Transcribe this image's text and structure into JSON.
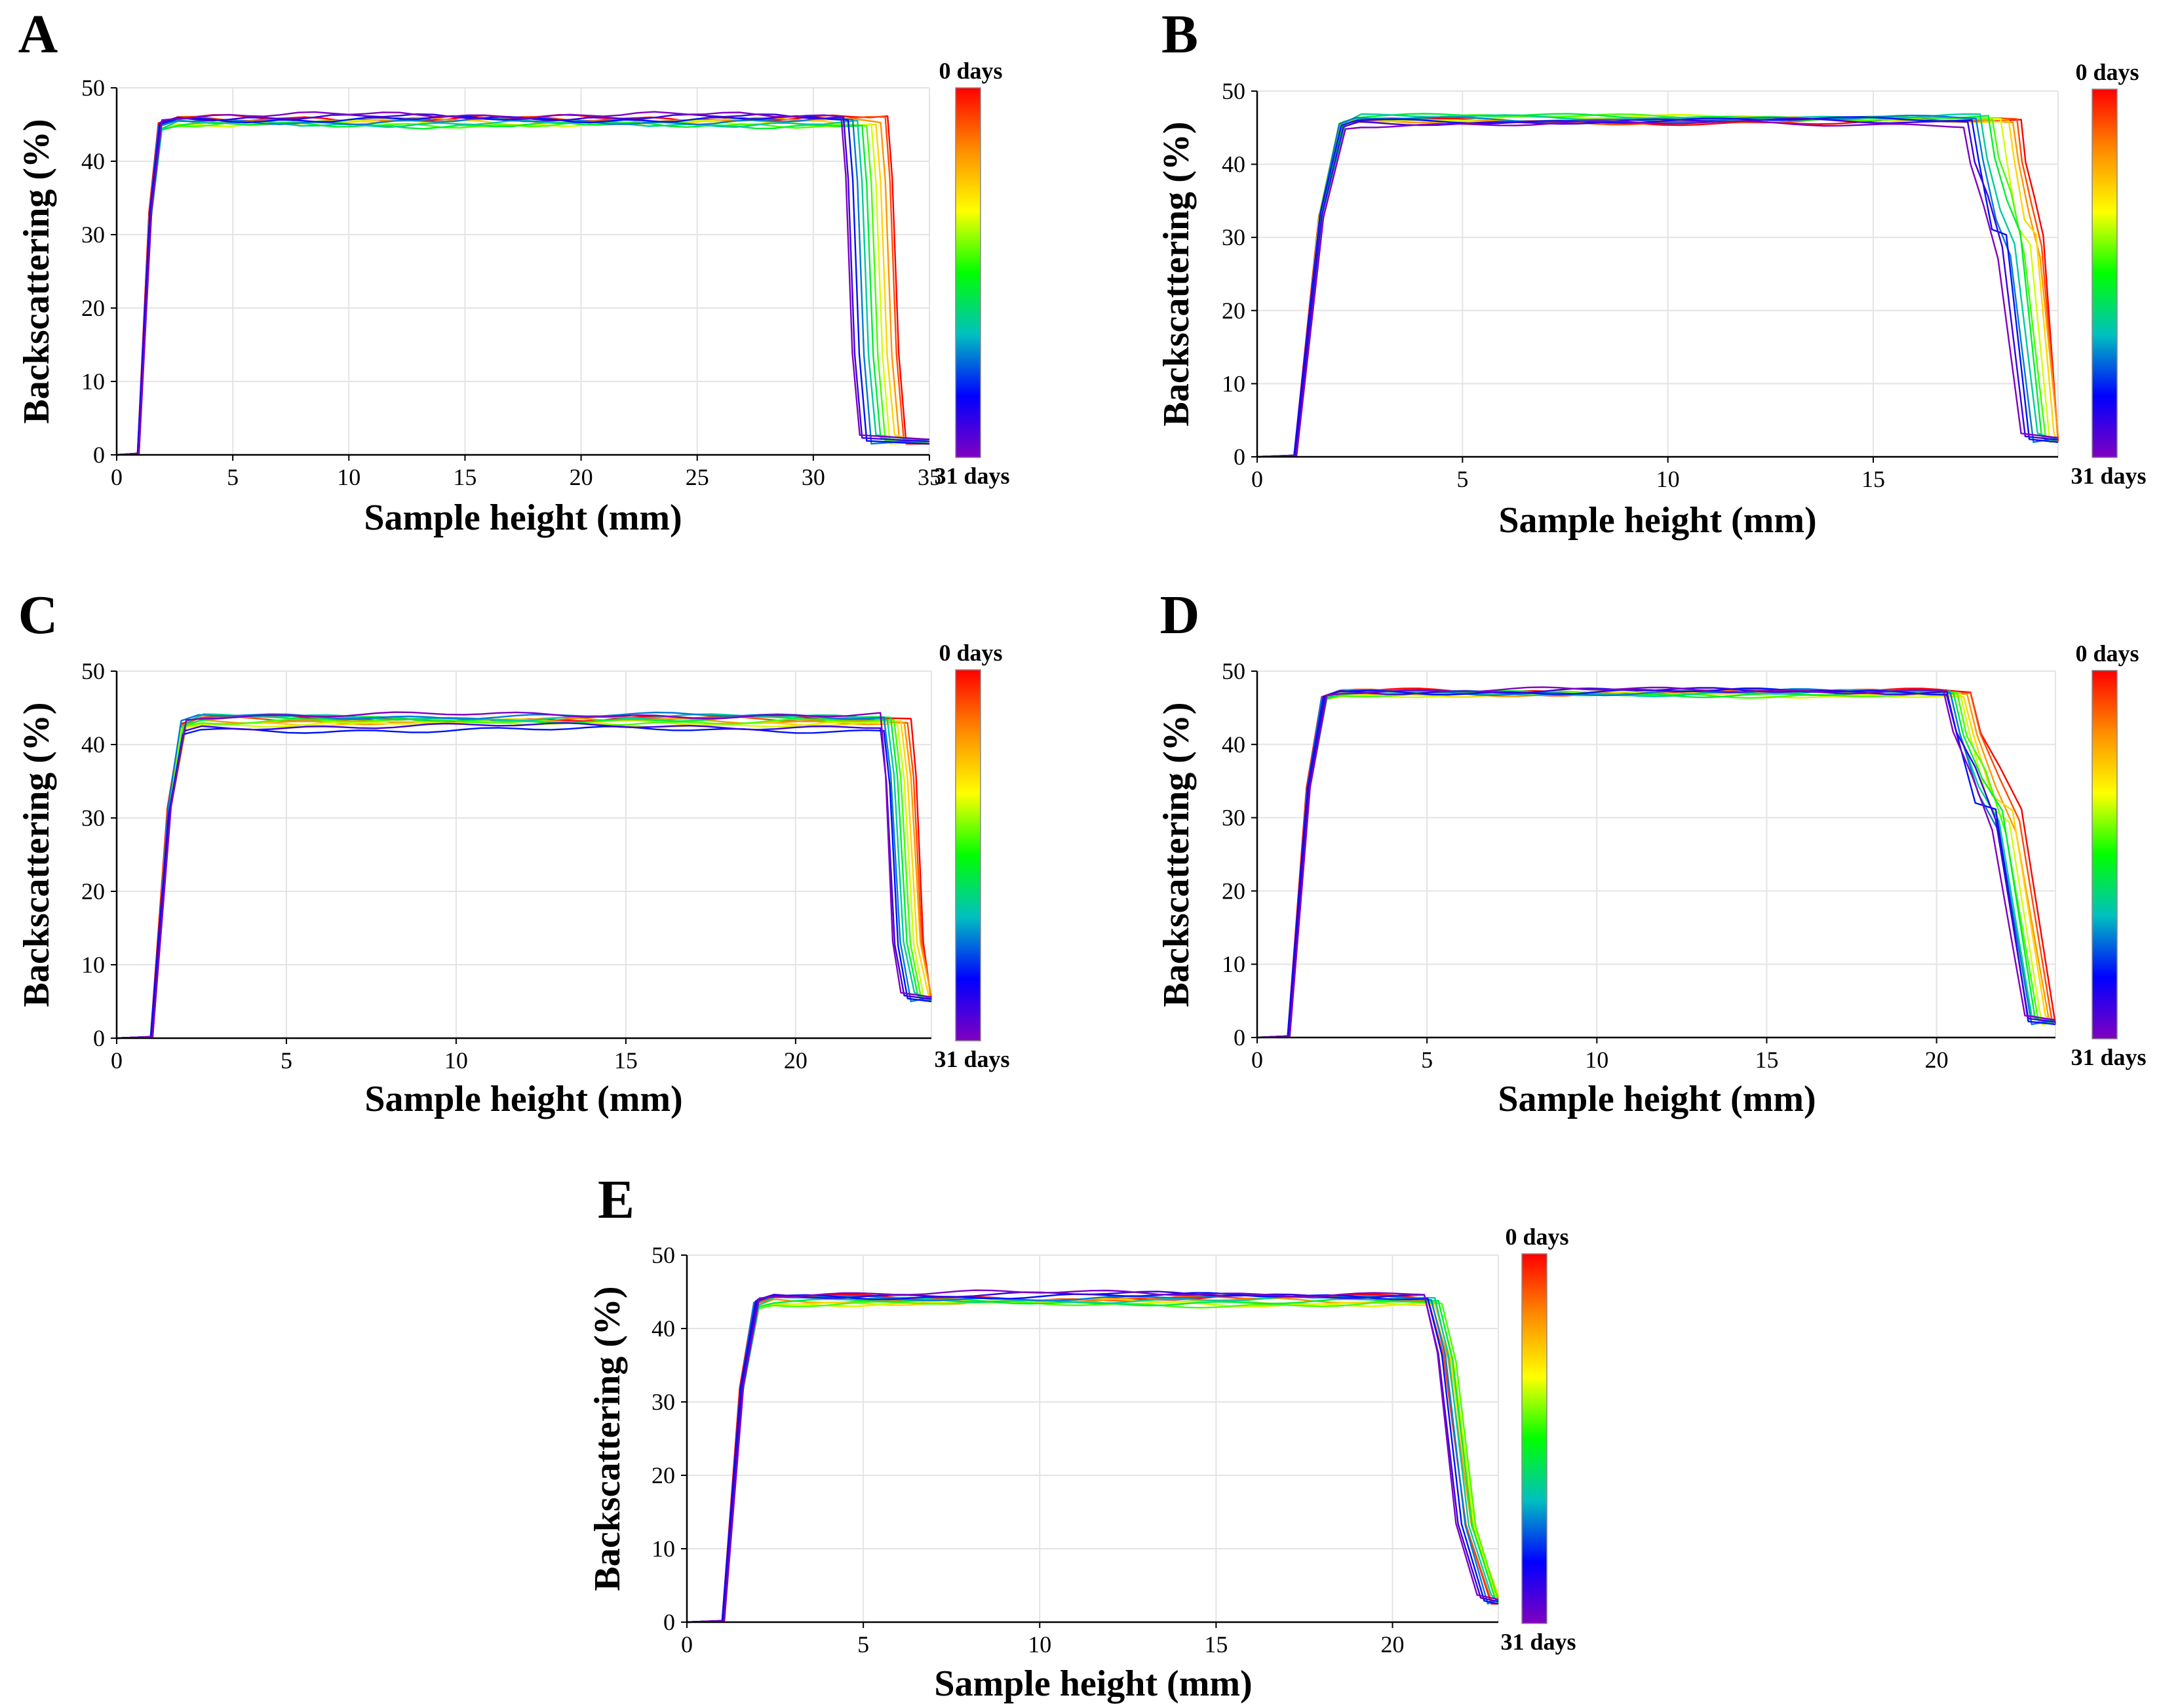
{
  "colormap": [
    "#ff0000",
    "#ff8c00",
    "#ffff00",
    "#00ff00",
    "#00c0c0",
    "#0000ff",
    "#8000c0"
  ],
  "chart_data": [
    {
      "id": "A",
      "type": "line",
      "letter": "A",
      "xlabel": "Sample height (mm)",
      "ylabel": "Backscattering (%)",
      "xlim": [
        0,
        35
      ],
      "ylim": [
        0,
        50
      ],
      "xticks": [
        0,
        5,
        10,
        15,
        20,
        25,
        30,
        35
      ],
      "yticks": [
        0,
        10,
        20,
        30,
        40,
        50
      ],
      "colorbar": {
        "top_label": "0 days",
        "bottom_label": "31 days"
      },
      "series_count": 12,
      "plateau_values": [
        45.9,
        45.7,
        45.5,
        45.3,
        45.1,
        45.0,
        44.9,
        45.1,
        45.4,
        45.7,
        46.0,
        46.3
      ],
      "rise_at": [
        0.9,
        1.8
      ],
      "fall_start": [
        33.2,
        33.1,
        32.9,
        32.7,
        32.5,
        32.3,
        32.1,
        31.9,
        31.7,
        31.5,
        31.3,
        31.2
      ],
      "fall_end": [
        34.0,
        33.9,
        33.7,
        33.5,
        33.3,
        33.1,
        32.9,
        32.7,
        32.5,
        32.3,
        32.1,
        32.0
      ],
      "end_value": 1.5,
      "xmax_data": 35
    },
    {
      "id": "B",
      "type": "line",
      "letter": "B",
      "xlabel": "Sample height (mm)",
      "ylabel": "Backscattering (%)",
      "xlim": [
        0,
        19.5
      ],
      "ylim": [
        0,
        50
      ],
      "xticks": [
        0,
        5,
        10,
        15
      ],
      "yticks": [
        0,
        10,
        20,
        30,
        40,
        50
      ],
      "colorbar": {
        "top_label": "0 days",
        "bottom_label": "31 days"
      },
      "series_count": 12,
      "plateau_values": [
        45.8,
        45.9,
        46.0,
        46.1,
        46.3,
        46.4,
        46.5,
        46.4,
        46.2,
        46.0,
        45.8,
        45.5
      ],
      "rise_at": [
        0.9,
        2.0
      ],
      "fall_start": [
        18.6,
        18.5,
        18.4,
        18.3,
        18.1,
        17.9,
        17.8,
        17.6,
        17.5,
        17.4,
        17.3,
        17.2
      ],
      "fall_end": [
        19.5,
        19.5,
        19.5,
        19.4,
        19.3,
        19.2,
        19.1,
        19.0,
        18.9,
        18.8,
        18.7,
        18.6
      ],
      "end_value": 2.0,
      "xmax_data": 19.5
    },
    {
      "id": "C",
      "type": "line",
      "letter": "C",
      "xlabel": "Sample height (mm)",
      "ylabel": "Backscattering (%)",
      "xlim": [
        0,
        24
      ],
      "ylim": [
        0,
        50
      ],
      "xticks": [
        0,
        5,
        10,
        15,
        20
      ],
      "yticks": [
        0,
        10,
        20,
        30,
        40,
        50
      ],
      "colorbar": {
        "top_label": "0 days",
        "bottom_label": "31 days"
      },
      "series_count": 12,
      "plateau_values": [
        43.5,
        43.4,
        43.2,
        43.0,
        42.8,
        43.1,
        43.4,
        43.7,
        43.9,
        42.0,
        42.5,
        44.0
      ],
      "rise_at": [
        1.0,
        1.9
      ],
      "fall_start": [
        23.4,
        23.3,
        23.2,
        23.1,
        23.0,
        22.9,
        22.8,
        22.7,
        22.6,
        22.6,
        22.5,
        22.5
      ],
      "fall_end": [
        24.0,
        24.0,
        24.0,
        23.9,
        23.8,
        23.7,
        23.6,
        23.5,
        23.4,
        23.3,
        23.2,
        23.1
      ],
      "end_value": 5.0,
      "xmax_data": 24
    },
    {
      "id": "D",
      "type": "line",
      "letter": "D",
      "xlabel": "Sample height (mm)",
      "ylabel": "Backscattering (%)",
      "xlim": [
        0,
        23.5
      ],
      "ylim": [
        0,
        50
      ],
      "xticks": [
        0,
        5,
        10,
        15,
        20
      ],
      "yticks": [
        0,
        10,
        20,
        30,
        40,
        50
      ],
      "colorbar": {
        "top_label": "0 days",
        "bottom_label": "31 days"
      },
      "series_count": 12,
      "plateau_values": [
        47.2,
        47.1,
        47.0,
        46.9,
        46.8,
        46.8,
        46.9,
        47.0,
        47.1,
        47.2,
        47.3,
        47.4
      ],
      "rise_at": [
        0.9,
        1.9
      ],
      "fall_start": [
        21.0,
        21.0,
        20.9,
        20.8,
        20.7,
        20.6,
        20.5,
        20.4,
        20.4,
        20.3,
        20.3,
        20.2
      ],
      "fall_end": [
        23.5,
        23.4,
        23.3,
        23.2,
        23.1,
        23.0,
        22.9,
        22.8,
        22.8,
        22.7,
        22.7,
        22.6
      ],
      "end_value": 1.8,
      "xmax_data": 23.5
    },
    {
      "id": "E",
      "type": "line",
      "letter": "E",
      "xlabel": "Sample height (mm)",
      "ylabel": "Backscattering (%)",
      "xlim": [
        0,
        23
      ],
      "ylim": [
        0,
        50
      ],
      "xticks": [
        0,
        5,
        10,
        15,
        20
      ],
      "yticks": [
        0,
        10,
        20,
        30,
        40,
        50
      ],
      "colorbar": {
        "top_label": "0 days",
        "bottom_label": "31 days"
      },
      "series_count": 12,
      "plateau_values": [
        44.2,
        44.0,
        43.8,
        43.6,
        43.4,
        43.3,
        43.6,
        43.9,
        44.2,
        44.4,
        44.6,
        44.8
      ],
      "rise_at": [
        1.0,
        1.9
      ],
      "fall_start": [
        21.0,
        21.0,
        21.1,
        21.2,
        21.3,
        21.4,
        21.3,
        21.2,
        21.1,
        21.0,
        20.9,
        20.9
      ],
      "fall_end": [
        22.8,
        22.8,
        23.0,
        23.0,
        23.0,
        23.0,
        22.9,
        22.8,
        22.7,
        22.6,
        22.5,
        22.4
      ],
      "end_value": 2.5,
      "xmax_data": 23
    }
  ]
}
